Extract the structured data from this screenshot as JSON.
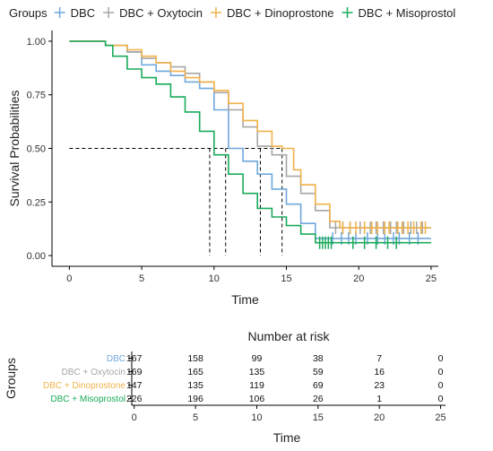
{
  "chart_data": [
    {
      "type": "line",
      "subtype": "kaplan-meier-step",
      "xlabel": "Time",
      "ylabel": "Survival Probabilities",
      "xlim": [
        -1.2,
        25.5
      ],
      "ylim": [
        -0.05,
        1.05
      ],
      "xticks": [
        "0",
        "5",
        "10",
        "15",
        "20",
        "25"
      ],
      "xtick_values": [
        0,
        5,
        10,
        15,
        20,
        25
      ],
      "yticks": [
        "0.00",
        "0.25",
        "0.50",
        "0.75",
        "1.00"
      ],
      "ytick_values": [
        0,
        0.25,
        0.5,
        0.75,
        1.0
      ],
      "grid": false,
      "legend": {
        "title": "Groups",
        "position": "top"
      },
      "median_lines": {
        "y": 0.5,
        "x": [
          9.7,
          10.8,
          13.2,
          14.7
        ],
        "style": "dashed"
      },
      "series": [
        {
          "name": "DBC",
          "color": "#6fa8dc",
          "x": [
            0,
            2.5,
            4.0,
            5.0,
            6.0,
            7.0,
            8.0,
            9.0,
            10.0,
            11.0,
            12.0,
            13.0,
            14.0,
            15.0,
            16.0,
            17.0,
            18.0,
            25.0
          ],
          "y": [
            1.0,
            0.98,
            0.95,
            0.89,
            0.86,
            0.84,
            0.81,
            0.78,
            0.68,
            0.5,
            0.44,
            0.38,
            0.31,
            0.24,
            0.15,
            0.08,
            0.08,
            0.08
          ],
          "censor_x": [
            18.2,
            18.8,
            19.3,
            19.8,
            20.6,
            21.3,
            21.8,
            22.4,
            22.8,
            23.5,
            24.1
          ]
        },
        {
          "name": "DBC + Oxytocin",
          "color": "#a6a6a6",
          "x": [
            0,
            2.5,
            4.0,
            5.0,
            6.0,
            7.0,
            8.0,
            9.0,
            10.0,
            11.0,
            12.0,
            13.0,
            14.0,
            15.0,
            16.0,
            17.0,
            18.0,
            25.0
          ],
          "y": [
            1.0,
            0.98,
            0.95,
            0.92,
            0.9,
            0.88,
            0.85,
            0.81,
            0.76,
            0.68,
            0.6,
            0.51,
            0.47,
            0.37,
            0.29,
            0.21,
            0.13,
            0.13
          ],
          "censor_x": [
            18.4,
            18.9,
            19.4,
            20.1,
            20.8,
            21.2,
            21.7,
            22.2,
            22.6,
            23.1,
            23.6,
            24.0,
            24.4
          ]
        },
        {
          "name": "DBC + Dinoprostone",
          "color": "#f1b24a",
          "x": [
            0,
            2.5,
            4.0,
            5.0,
            6.0,
            7.0,
            8.0,
            9.0,
            10.0,
            11.0,
            12.0,
            13.0,
            14.0,
            14.7,
            15.5,
            16.0,
            17.0,
            18.0,
            18.7,
            25.0
          ],
          "y": [
            1.0,
            0.98,
            0.96,
            0.93,
            0.9,
            0.86,
            0.83,
            0.81,
            0.77,
            0.71,
            0.63,
            0.58,
            0.51,
            0.5,
            0.4,
            0.33,
            0.24,
            0.16,
            0.13,
            0.13
          ],
          "censor_x": [
            18.9,
            19.4,
            19.8,
            20.4,
            20.9,
            21.3,
            21.8,
            22.1,
            22.7,
            23.0,
            23.4,
            23.8,
            24.3,
            24.6
          ]
        },
        {
          "name": "DBC + Misoprostol",
          "color": "#1aab5a",
          "x": [
            0,
            2.5,
            3.0,
            4.0,
            5.0,
            6.0,
            7.0,
            8.0,
            9.0,
            10.0,
            11.0,
            12.0,
            13.0,
            14.0,
            15.0,
            16.0,
            17.0,
            25.0
          ],
          "y": [
            1.0,
            0.98,
            0.93,
            0.87,
            0.83,
            0.8,
            0.74,
            0.67,
            0.58,
            0.47,
            0.38,
            0.29,
            0.22,
            0.18,
            0.14,
            0.1,
            0.06,
            0.06
          ],
          "censor_x": [
            17.3,
            17.5,
            17.7,
            17.9,
            18.1,
            19.6,
            20.4,
            21.2,
            22.0,
            22.6
          ]
        }
      ]
    },
    {
      "type": "table",
      "title": "Number at risk",
      "ylabel": "Groups",
      "xlabel": "Time",
      "columns": [
        "0",
        "5",
        "10",
        "15",
        "20",
        "25"
      ],
      "column_values": [
        0,
        5,
        10,
        15,
        20,
        25
      ],
      "rows": [
        {
          "name": "DBC",
          "color": "#6fa8dc",
          "values": [
            "167",
            "158",
            "99",
            "38",
            "7",
            "0"
          ]
        },
        {
          "name": "DBC + Oxytocin",
          "color": "#a6a6a6",
          "values": [
            "169",
            "165",
            "135",
            "59",
            "16",
            "0"
          ]
        },
        {
          "name": "DBC + Dinoprostone",
          "color": "#f1b24a",
          "values": [
            "147",
            "135",
            "119",
            "69",
            "23",
            "0"
          ]
        },
        {
          "name": "DBC + Misoprostol",
          "color": "#1aab5a",
          "values": [
            "226",
            "196",
            "106",
            "26",
            "1",
            "0"
          ]
        }
      ]
    }
  ]
}
